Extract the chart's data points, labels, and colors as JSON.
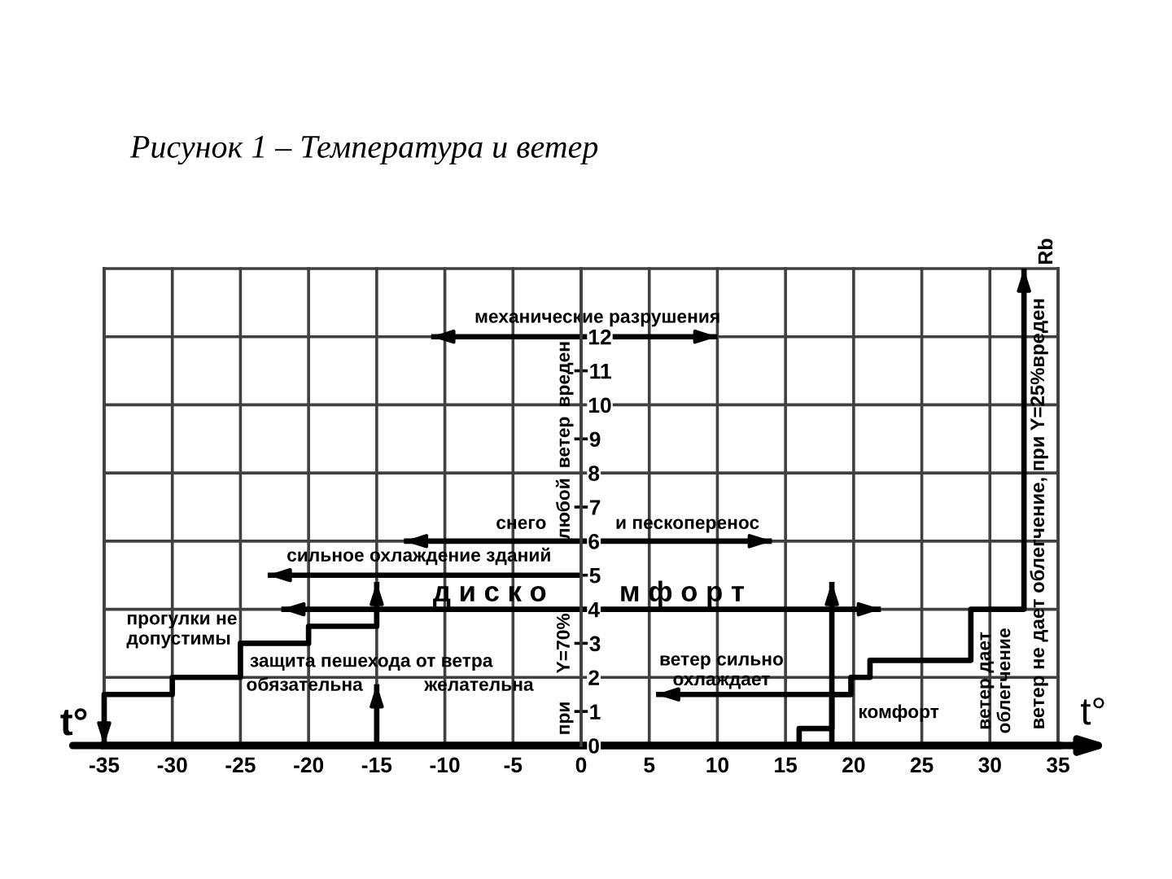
{
  "chart_data": {
    "type": "line",
    "title": "Рисунок 1 – Температура и ветер",
    "xlabel": "t°",
    "xlim": [
      -35,
      35
    ],
    "xticks": [
      -35,
      -30,
      -25,
      -20,
      -15,
      -10,
      -5,
      0,
      5,
      10,
      15,
      20,
      25,
      30,
      35
    ],
    "ylim": [
      0,
      14
    ],
    "yticks": [
      0,
      1,
      2,
      3,
      4,
      5,
      6,
      7,
      8,
      9,
      10,
      11,
      12
    ],
    "grid": true,
    "series": [
      {
        "color": "#000000",
        "x": [
          -15,
          -15,
          -20,
          -20,
          -25,
          -25,
          -30,
          -30,
          -35,
          -35
        ],
        "values": [
          4.8,
          3.5,
          3.5,
          3,
          3,
          2,
          2,
          1.5,
          1.5,
          0
        ]
      },
      {
        "color": "#000000",
        "x": [
          -15,
          -15
        ],
        "values": [
          0,
          1.8
        ]
      },
      {
        "color": "#000000",
        "x": [
          16,
          16,
          18.4,
          18.4,
          19.8,
          19.8,
          21.2,
          21.2,
          28.6,
          28.6,
          32.5,
          32.5
        ],
        "values": [
          0,
          0.5,
          0.5,
          1.5,
          1.5,
          2,
          2,
          2.5,
          2.5,
          4,
          4,
          14
        ]
      },
      {
        "color": "#000000",
        "x": [
          18.4,
          18.4
        ],
        "values": [
          0,
          4.8
        ]
      },
      {
        "color": "#000000",
        "x": [
          19.8,
          5.5
        ],
        "values": [
          1.5,
          1.5
        ]
      },
      {
        "color": "#000000",
        "x": [
          -11,
          10
        ],
        "values": [
          12,
          12
        ]
      },
      {
        "color": "#000000",
        "x": [
          -13,
          14
        ],
        "values": [
          6,
          6
        ]
      },
      {
        "color": "#000000",
        "x": [
          0,
          -23
        ],
        "values": [
          5,
          5
        ]
      },
      {
        "color": "#000000",
        "x": [
          -22,
          22
        ],
        "values": [
          4,
          4
        ]
      }
    ],
    "annotations": [
      "механические разрушения",
      "снего",
      "и пескоперенос",
      "сильное охлаждение зданий",
      "д и с к о",
      "м ф о р т",
      "прогулки не\nдопустимы",
      "защита пешехода от ветра",
      "обязательна",
      "желательна",
      "ветер сильно\nохлаждает",
      "комфорт",
      "ветер дает\nоблегчение",
      "ветер не дает облегчение, при Y=25%вреден",
      "при",
      "Y=70%",
      "любой",
      "ветер",
      "вреден",
      "Rb",
      "t°"
    ]
  }
}
